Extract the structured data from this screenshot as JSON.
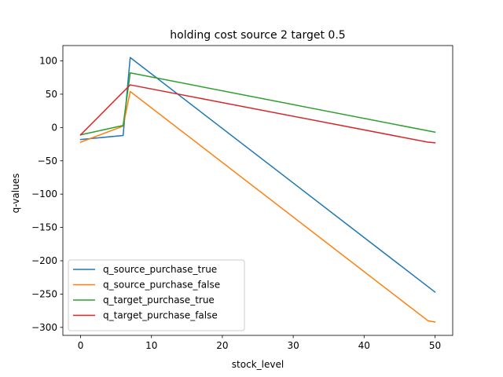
{
  "chart_data": {
    "type": "line",
    "title": "holding cost source 2 target 0.5",
    "xlabel": "stock_level",
    "ylabel": "q-values",
    "xlim": [
      -2.5,
      52.5
    ],
    "ylim": [
      -312,
      123
    ],
    "xticks": [
      0,
      10,
      20,
      30,
      40,
      50
    ],
    "yticks": [
      100,
      50,
      0,
      -50,
      -100,
      -150,
      -200,
      -250,
      -300
    ],
    "grid": false,
    "legend_position": "lower-left",
    "series": [
      {
        "name": "q_source_purchase_true",
        "color": "#1f77b4",
        "x": [
          0,
          6,
          7,
          50
        ],
        "y": [
          -18,
          -12,
          105,
          -247
        ]
      },
      {
        "name": "q_source_purchase_false",
        "color": "#ff7f0e",
        "x": [
          0,
          6,
          7,
          49,
          50
        ],
        "y": [
          -22,
          2,
          54,
          -290,
          -292
        ]
      },
      {
        "name": "q_target_purchase_true",
        "color": "#2ca02c",
        "x": [
          0,
          6,
          7,
          50
        ],
        "y": [
          -11,
          3,
          82,
          -7
        ]
      },
      {
        "name": "q_target_purchase_false",
        "color": "#d62728",
        "x": [
          0,
          7,
          49,
          50
        ],
        "y": [
          -11,
          64,
          -22,
          -23
        ]
      }
    ]
  }
}
